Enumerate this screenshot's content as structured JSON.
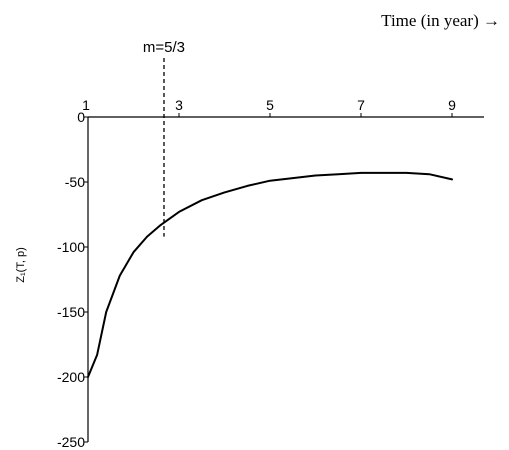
{
  "chart_data": {
    "type": "line",
    "xlabel": "Time (in year) →",
    "ylabel": "Z₁(T, p)",
    "annotation": "m=5/3",
    "annotation_x": 2.67,
    "xlim": [
      1,
      10
    ],
    "ylim": [
      -250,
      0
    ],
    "x_ticks": [
      1,
      3,
      5,
      7,
      9
    ],
    "y_ticks": [
      0,
      -50,
      -100,
      -150,
      -200,
      -250
    ],
    "x_tick_labels": [
      "1",
      "3",
      "5",
      "7",
      "9"
    ],
    "y_tick_labels": [
      "0",
      "-50",
      "-100",
      "-150",
      "-200",
      "-250"
    ],
    "grid": false,
    "series": [
      {
        "color": "#000000",
        "x": [
          1.0,
          1.2,
          1.4,
          1.7,
          2.0,
          2.3,
          2.6,
          3.0,
          3.5,
          4.0,
          4.5,
          5.0,
          5.5,
          6.0,
          6.5,
          7.0,
          7.5,
          8.0,
          8.5,
          9.0
        ],
        "y": [
          -200,
          -183,
          -150,
          -122,
          -104,
          -92,
          -83,
          -73,
          -64,
          -58,
          -53,
          -49,
          -47,
          -45,
          -44,
          -43,
          -43,
          -43,
          -44,
          -48
        ]
      }
    ]
  }
}
